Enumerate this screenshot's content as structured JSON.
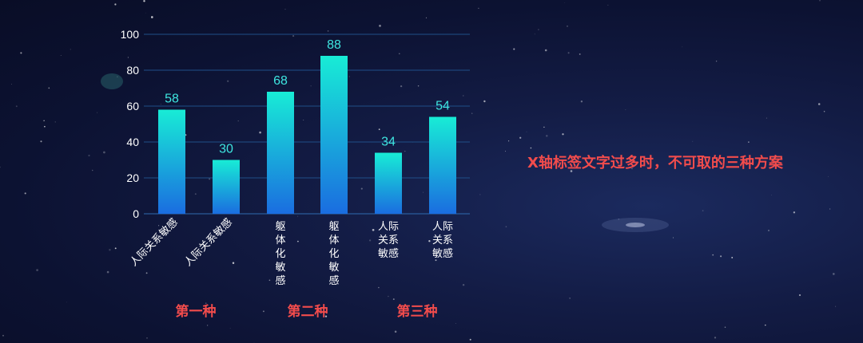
{
  "caption": "X轴标签文字过多时，不可取的三种方案",
  "groups": [
    {
      "label": "第一种"
    },
    {
      "label": "第二种"
    },
    {
      "label": "第三种"
    }
  ],
  "colors": {
    "bar_top": "#18ecd6",
    "bar_bottom": "#1a6de0",
    "data_label": "#3ee6e0",
    "accent_text": "#f24c4c",
    "grid": "#1f4f88"
  },
  "chart_data": {
    "type": "bar",
    "categories": [
      "人际关系敏感",
      "人际关系敏感",
      "躯体化敏感",
      "躯体化敏感",
      "人际关系敏感",
      "人际关系敏感"
    ],
    "values": [
      58,
      30,
      68,
      88,
      34,
      54
    ],
    "yticks": [
      0,
      20,
      40,
      60,
      80,
      100
    ],
    "ylim": [
      0,
      100
    ],
    "grid": true,
    "label_styles": [
      "rotated",
      "rotated",
      "vertical",
      "vertical",
      "wrap2",
      "wrap2"
    ]
  }
}
